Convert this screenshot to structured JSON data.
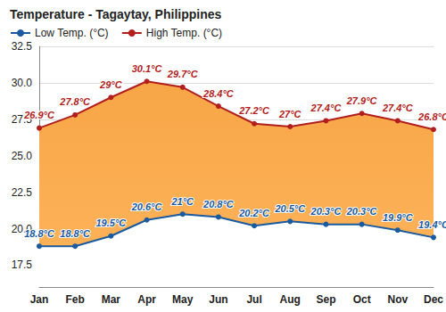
{
  "chart_data": {
    "type": "line",
    "title": "Temperature - Tagaytay, Philippines",
    "categories": [
      "Jan",
      "Feb",
      "Mar",
      "Apr",
      "May",
      "Jun",
      "Jul",
      "Aug",
      "Sep",
      "Oct",
      "Nov",
      "Dec"
    ],
    "series": [
      {
        "name": "Low Temp. (°C)",
        "color": "#1a5a9e",
        "marker": "circle",
        "values": [
          18.8,
          18.8,
          19.5,
          20.6,
          21,
          20.8,
          20.2,
          20.5,
          20.3,
          20.3,
          19.9,
          19.4
        ],
        "value_labels": [
          "18.8°C",
          "18.8°C",
          "19.5°C",
          "20.6°C",
          "21°C",
          "20.8°C",
          "20.2°C",
          "20.5°C",
          "20.3°C",
          "20.3°C",
          "19.9°C",
          "19.4°C"
        ]
      },
      {
        "name": "High Temp. (°C)",
        "color": "#b21e1e",
        "marker": "circle",
        "values": [
          26.9,
          27.8,
          29,
          30.1,
          29.7,
          28.4,
          27.2,
          27,
          27.4,
          27.9,
          27.4,
          26.8
        ],
        "value_labels": [
          "26.9°C",
          "27.8°C",
          "29°C",
          "30.1°C",
          "29.7°C",
          "28.4°C",
          "27.2°C",
          "27°C",
          "27.4°C",
          "27.9°C",
          "27.4°C",
          "26.8°C"
        ]
      }
    ],
    "ylim": [
      16,
      32.5
    ],
    "yticks": [
      17.5,
      {
        "value": 20,
        "label": "20.0"
      },
      22.5,
      {
        "value": 25,
        "label": "25.0"
      },
      27.5,
      {
        "value": 30,
        "label": "30.0"
      },
      32.5
    ],
    "grid": true,
    "legend": "top-left",
    "data_labels": true
  }
}
